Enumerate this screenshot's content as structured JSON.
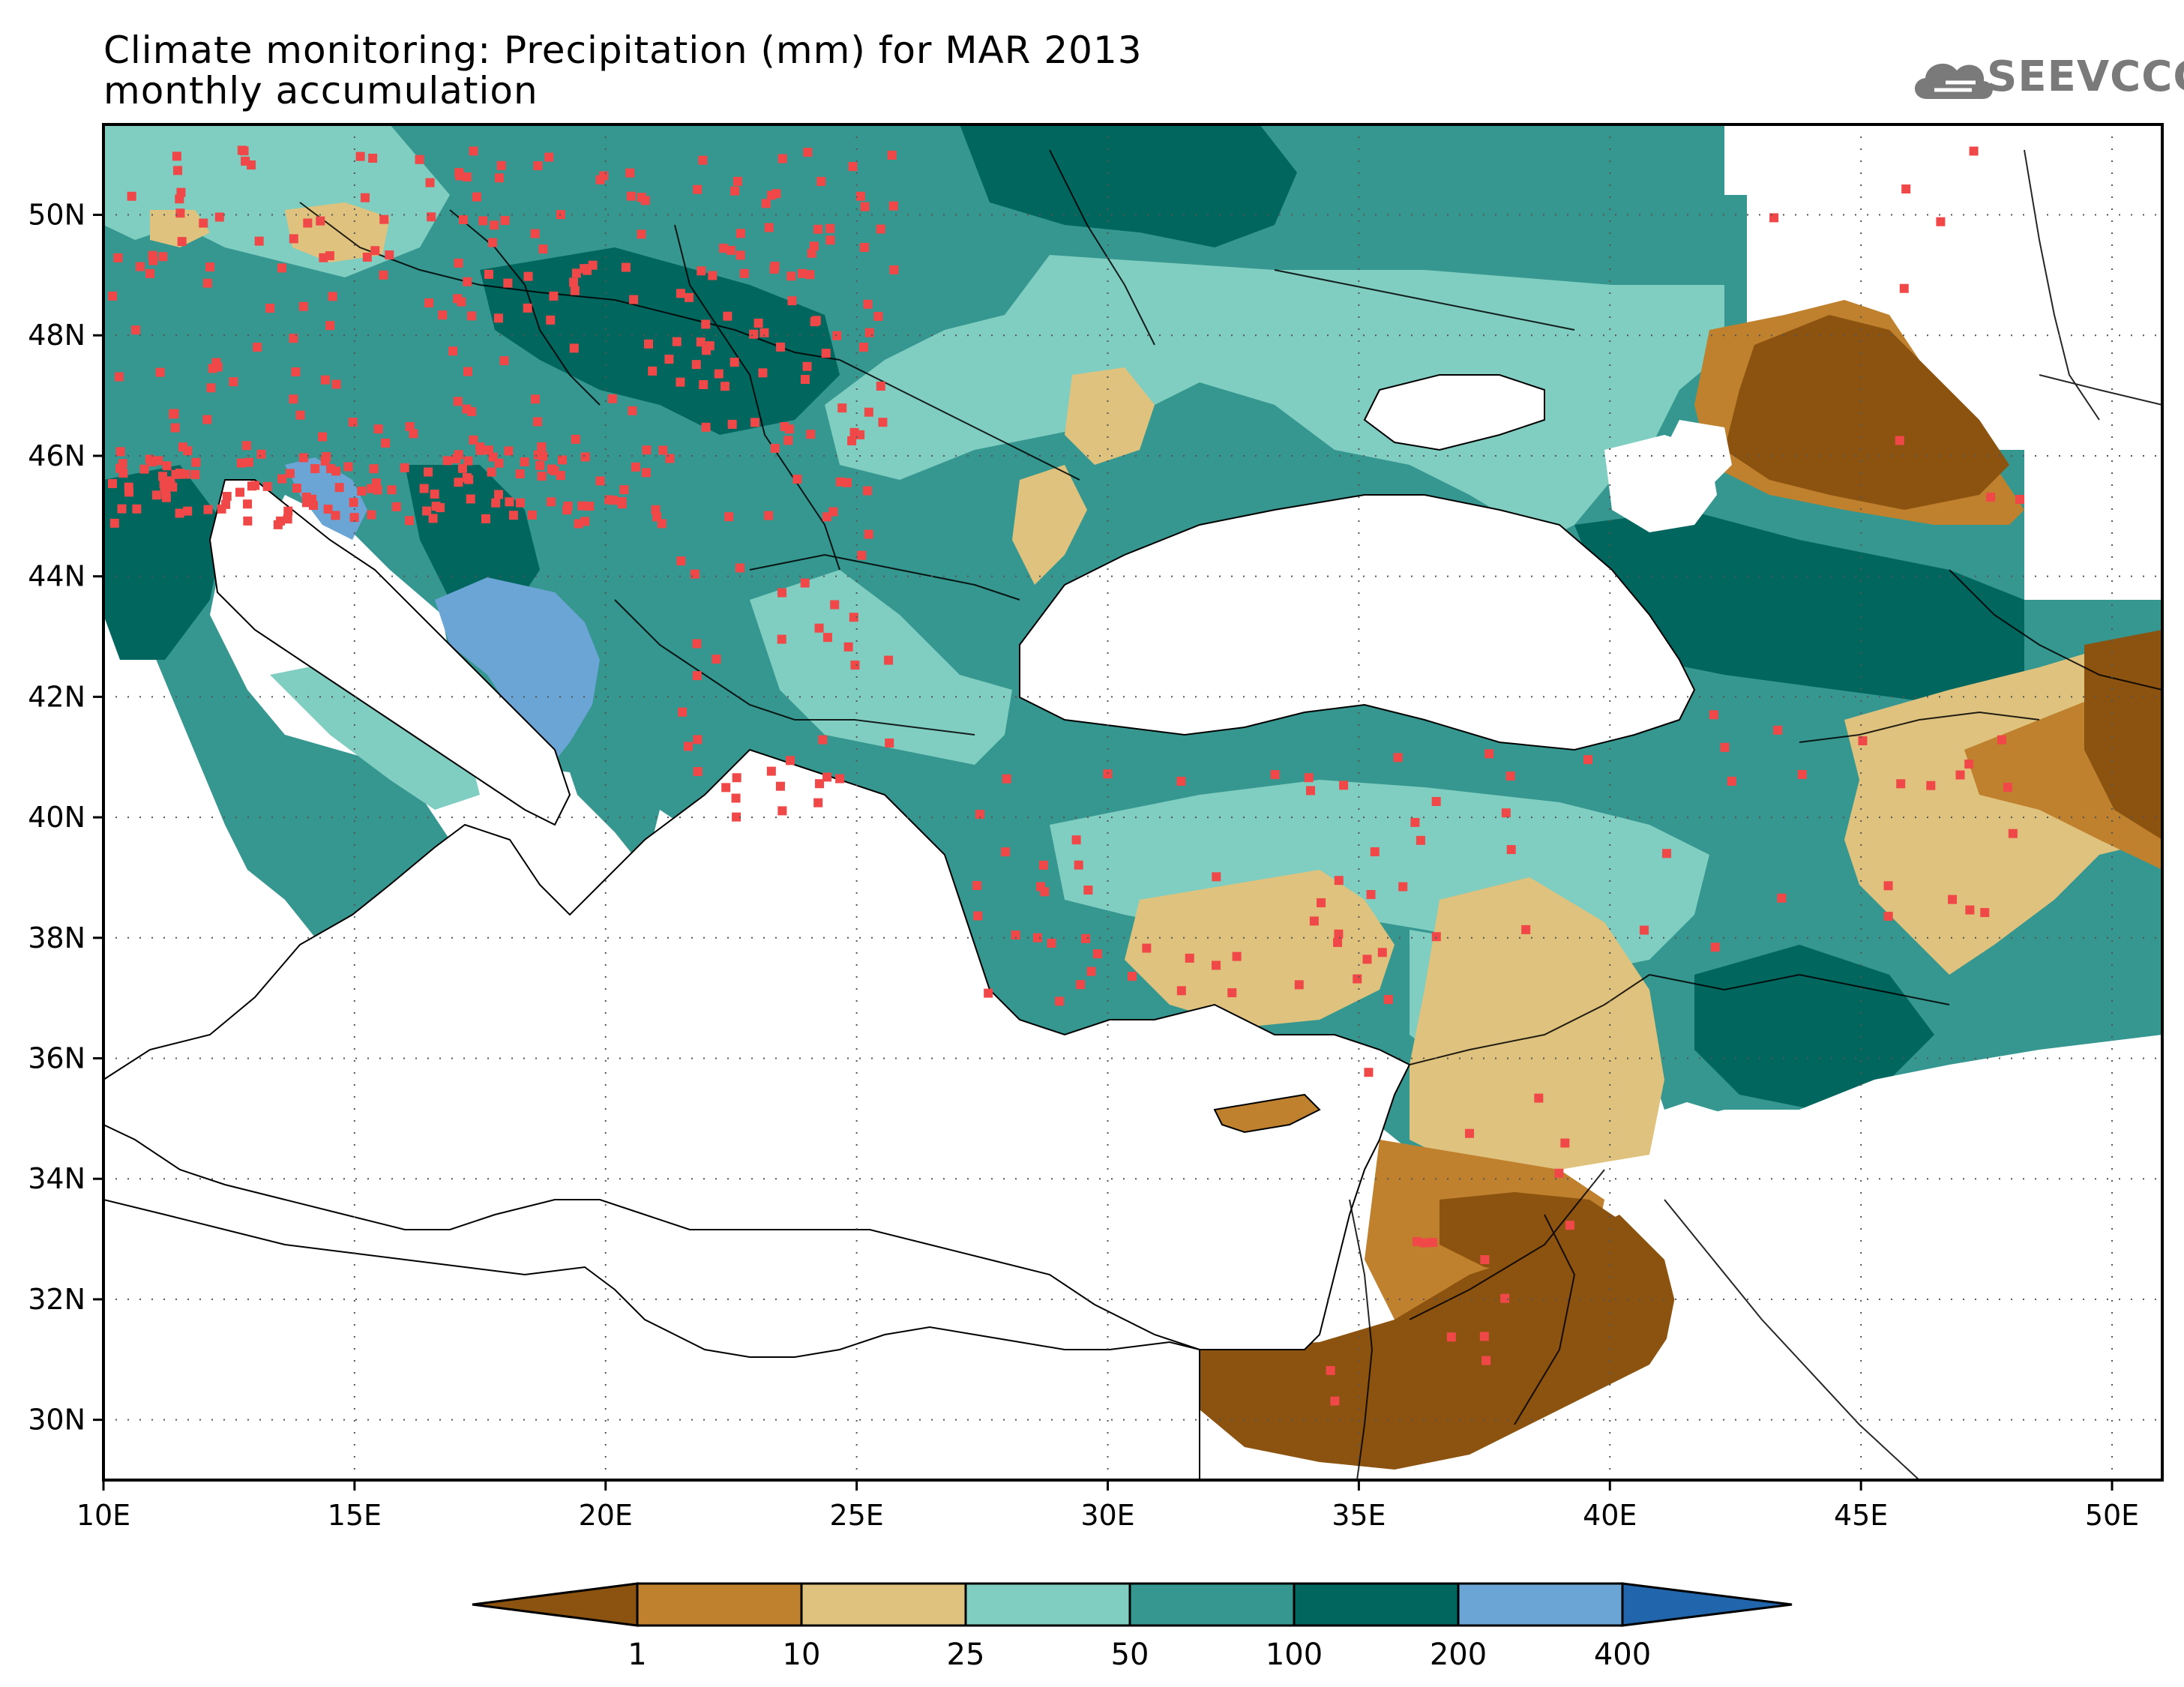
{
  "header": {
    "title_line1": "Climate monitoring: Precipitation (mm) for MAR 2013",
    "title_line2": "monthly accumulation",
    "logo_text": "SEEVCCC"
  },
  "map": {
    "lon_labels": [
      "10E",
      "15E",
      "20E",
      "25E",
      "30E",
      "35E",
      "40E",
      "45E",
      "50E"
    ],
    "lat_labels": [
      "50N",
      "48N",
      "46N",
      "44N",
      "42N",
      "40N",
      "38N",
      "36N",
      "34N",
      "32N",
      "30N"
    ],
    "lon_range": [
      10,
      51
    ],
    "lat_range": [
      29,
      51.5
    ]
  },
  "colorbar": {
    "labels": [
      "1",
      "10",
      "25",
      "50",
      "100",
      "200",
      "400"
    ],
    "colors": [
      "#8c520f",
      "#bf812d",
      "#dfc27d",
      "#80cdc1",
      "#35978f",
      "#01665e",
      "#6aa5d6",
      "#2166ac"
    ]
  }
}
